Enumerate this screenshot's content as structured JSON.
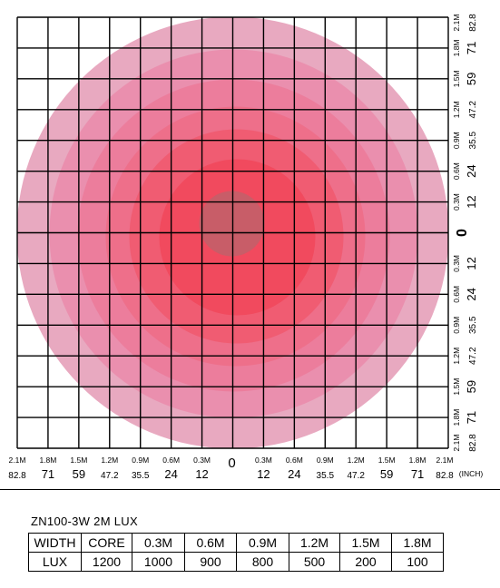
{
  "x_axis": {
    "left": [
      {
        "m": "2.1M",
        "inch": "82.8"
      },
      {
        "m": "1.8M",
        "inch": "71"
      },
      {
        "m": "1.5M",
        "inch": "59"
      },
      {
        "m": "1.2M",
        "inch": "47.2"
      },
      {
        "m": "0.9M",
        "inch": "35.5"
      },
      {
        "m": "0.6M",
        "inch": "24"
      },
      {
        "m": "0.3M",
        "inch": "12"
      }
    ],
    "zero": "0",
    "right": [
      {
        "m": "0.3M",
        "inch": "12"
      },
      {
        "m": "0.6M",
        "inch": "24"
      },
      {
        "m": "0.9M",
        "inch": "35.5"
      },
      {
        "m": "1.2M",
        "inch": "47.2"
      },
      {
        "m": "1.5M",
        "inch": "59"
      },
      {
        "m": "1.8M",
        "inch": "71"
      },
      {
        "m": "2.1M",
        "inch": "82.8"
      }
    ],
    "unit": "(INCH)"
  },
  "y_axis": {
    "top": [
      {
        "m": "2.1M",
        "inch": "82.8"
      },
      {
        "m": "1.8M",
        "inch": "71"
      },
      {
        "m": "1.5M",
        "inch": "59"
      },
      {
        "m": "1.2M",
        "inch": "47.2"
      },
      {
        "m": "0.9M",
        "inch": "35.5"
      },
      {
        "m": "0.6M",
        "inch": "24"
      },
      {
        "m": "0.3M",
        "inch": "12"
      }
    ],
    "zero": "0",
    "bottom": [
      {
        "m": "0.3M",
        "inch": "12"
      },
      {
        "m": "0.6M",
        "inch": "24"
      },
      {
        "m": "0.9M",
        "inch": "35.5"
      },
      {
        "m": "1.2M",
        "inch": "47.2"
      },
      {
        "m": "1.5M",
        "inch": "59"
      },
      {
        "m": "1.8M",
        "inch": "71"
      },
      {
        "m": "2.1M",
        "inch": "82.8"
      }
    ]
  },
  "colors": {
    "rings": [
      "#e8a9c0",
      "#ea8fae",
      "#ec7d9c",
      "#ee6f8a",
      "#f05c72",
      "#f14a5e"
    ],
    "core": "#c85d68",
    "grid": "#000000"
  },
  "table": {
    "caption": "ZN100-3W  2M  LUX",
    "headers": [
      "WIDTH",
      "CORE",
      "0.3M",
      "0.6M",
      "0.9M",
      "1.2M",
      "1.5M",
      "1.8M"
    ],
    "row": [
      "LUX",
      "1200",
      "1000",
      "900",
      "800",
      "500",
      "200",
      "100"
    ]
  }
}
